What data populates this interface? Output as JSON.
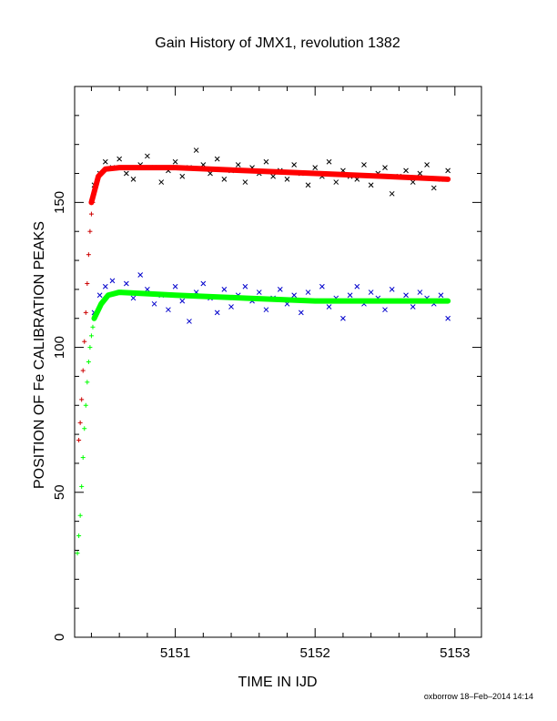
{
  "chart_data": {
    "type": "scatter",
    "title": "Gain History of JMX1, revolution 1382",
    "xlabel": "TIME IN IJD",
    "ylabel": "POSITION OF Fe CALIBRATION PEAKS",
    "xlim": [
      5150.28,
      5153.19
    ],
    "ylim": [
      0,
      190
    ],
    "x_ticks": [
      5151,
      5152,
      5153
    ],
    "x_tick_labels": [
      "5151",
      "5152",
      "5153"
    ],
    "y_ticks": [
      0,
      50,
      100,
      150
    ],
    "y_tick_labels": [
      "0",
      "50",
      "100",
      "150"
    ],
    "grid": false,
    "legend": "none",
    "series": [
      {
        "marker": "x",
        "color": "#000000",
        "x": [
          5150.42,
          5150.46,
          5150.5,
          5150.55,
          5150.6,
          5150.65,
          5150.7,
          5150.75,
          5150.8,
          5150.85,
          5150.9,
          5150.95,
          5151.0,
          5151.05,
          5151.1,
          5151.15,
          5151.2,
          5151.25,
          5151.3,
          5151.35,
          5151.4,
          5151.45,
          5151.5,
          5151.55,
          5151.6,
          5151.65,
          5151.7,
          5151.75,
          5151.8,
          5151.85,
          5151.9,
          5151.95,
          5152.0,
          5152.05,
          5152.1,
          5152.15,
          5152.2,
          5152.25,
          5152.3,
          5152.35,
          5152.4,
          5152.45,
          5152.5,
          5152.55,
          5152.6,
          5152.65,
          5152.7,
          5152.75,
          5152.8,
          5152.85,
          5152.9,
          5152.95
        ],
        "y": [
          156,
          160,
          164,
          162,
          165,
          160,
          158,
          163,
          166,
          162,
          157,
          161,
          164,
          159,
          162,
          168,
          163,
          160,
          165,
          158,
          161,
          163,
          157,
          162,
          160,
          164,
          159,
          161,
          158,
          163,
          160,
          156,
          162,
          159,
          164,
          157,
          161,
          159,
          158,
          163,
          156,
          160,
          162,
          153,
          159,
          161,
          157,
          160,
          163,
          155,
          158,
          161
        ]
      },
      {
        "marker": "x",
        "color": "#0000cc",
        "x": [
          5150.42,
          5150.46,
          5150.5,
          5150.55,
          5150.6,
          5150.65,
          5150.7,
          5150.75,
          5150.8,
          5150.85,
          5150.9,
          5150.95,
          5151.0,
          5151.05,
          5151.1,
          5151.15,
          5151.2,
          5151.25,
          5151.3,
          5151.35,
          5151.4,
          5151.45,
          5151.5,
          5151.55,
          5151.6,
          5151.65,
          5151.7,
          5151.75,
          5151.8,
          5151.85,
          5151.9,
          5151.95,
          5152.0,
          5152.05,
          5152.1,
          5152.15,
          5152.2,
          5152.25,
          5152.3,
          5152.35,
          5152.4,
          5152.45,
          5152.5,
          5152.55,
          5152.6,
          5152.65,
          5152.7,
          5152.75,
          5152.8,
          5152.85,
          5152.9,
          5152.95
        ],
        "y": [
          112,
          118,
          121,
          123,
          119,
          122,
          117,
          125,
          120,
          115,
          118,
          113,
          121,
          116,
          109,
          119,
          122,
          117,
          112,
          120,
          114,
          118,
          121,
          116,
          119,
          113,
          117,
          120,
          115,
          118,
          112,
          119,
          116,
          121,
          114,
          117,
          110,
          118,
          121,
          115,
          119,
          117,
          113,
          120,
          116,
          118,
          114,
          119,
          117,
          115,
          118,
          110
        ]
      },
      {
        "marker": "+",
        "color": "#cc0000",
        "x": [
          5150.31,
          5150.32,
          5150.33,
          5150.34,
          5150.35,
          5150.36,
          5150.37,
          5150.38,
          5150.39,
          5150.4,
          5150.41
        ],
        "y": [
          68,
          74,
          82,
          92,
          102,
          112,
          122,
          132,
          140,
          146,
          150
        ]
      },
      {
        "marker": "+",
        "color": "#00ff00",
        "x": [
          5150.3,
          5150.31,
          5150.32,
          5150.33,
          5150.34,
          5150.35,
          5150.36,
          5150.37,
          5150.38,
          5150.39,
          5150.4,
          5150.41,
          5150.42
        ],
        "y": [
          29,
          35,
          42,
          52,
          62,
          72,
          80,
          88,
          95,
          100,
          104,
          107,
          110
        ]
      },
      {
        "type": "line",
        "color": "#ff0000",
        "x": [
          5150.4,
          5150.45,
          5150.5,
          5150.6,
          5150.8,
          5151.0,
          5151.5,
          5152.0,
          5152.5,
          5152.95
        ],
        "y": [
          150,
          159,
          161.5,
          162,
          162,
          162,
          161,
          160,
          159,
          158
        ]
      },
      {
        "type": "line",
        "color": "#00ff00",
        "x": [
          5150.42,
          5150.47,
          5150.52,
          5150.6,
          5150.8,
          5151.0,
          5151.5,
          5152.0,
          5152.5,
          5152.95
        ],
        "y": [
          110,
          115,
          118,
          119,
          118.5,
          118,
          117,
          116,
          116,
          116
        ]
      }
    ]
  },
  "footer": {
    "credit": "oxborrow 18–Feb–2014 14:14"
  }
}
